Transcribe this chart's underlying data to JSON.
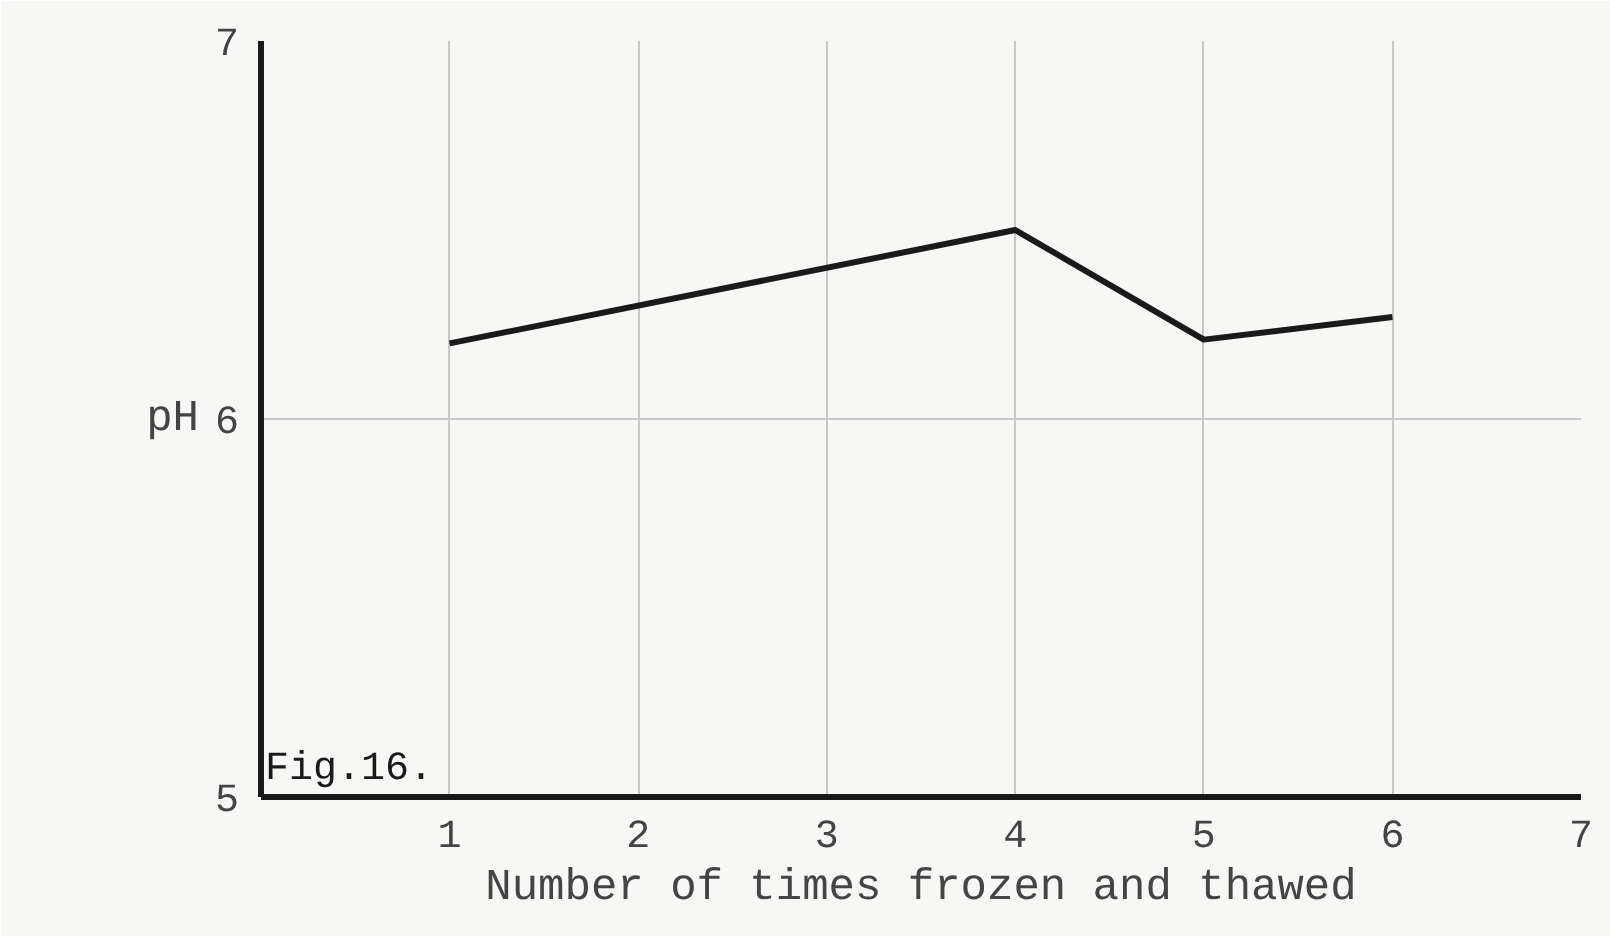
{
  "chart_data": {
    "type": "line",
    "xlabel": "Number of times frozen and thawed",
    "ylabel": "pH",
    "annotations": [
      "Fig.16."
    ],
    "x": [
      1,
      4,
      5,
      6
    ],
    "series": [
      {
        "color": "#1a1a1a",
        "values": [
          6.2,
          6.5,
          6.21,
          6.27
        ]
      }
    ],
    "xlim": [
      0,
      7
    ],
    "xticks": [
      1,
      2,
      3,
      4,
      5,
      6,
      7
    ],
    "ylim": [
      5,
      7
    ],
    "yticks": [
      5,
      6,
      7
    ],
    "grid": true,
    "marker": "none",
    "line_style": "solid"
  }
}
